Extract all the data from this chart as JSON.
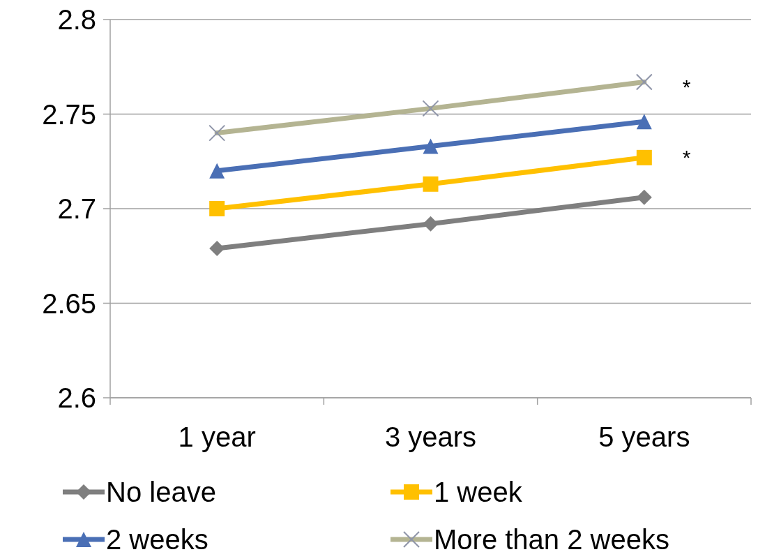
{
  "chart_data": {
    "type": "line",
    "categories": [
      "1 year",
      "3 years",
      "5 years"
    ],
    "series": [
      {
        "name": "No leave",
        "color": "#7f7f7f",
        "marker": "diamond",
        "values": [
          2.679,
          2.692,
          2.706
        ]
      },
      {
        "name": "1 week",
        "color": "#ffc000",
        "marker": "square",
        "values": [
          2.7,
          2.713,
          2.727
        ]
      },
      {
        "name": "2 weeks",
        "color": "#4a6fb5",
        "marker": "triangle",
        "values": [
          2.72,
          2.733,
          2.746
        ]
      },
      {
        "name": "More than 2 weeks",
        "color": "#b4b492",
        "marker": "cross",
        "values": [
          2.74,
          2.753,
          2.767
        ]
      }
    ],
    "ylim": [
      2.6,
      2.8
    ],
    "yticks": [
      2.6,
      2.65,
      2.7,
      2.75,
      2.8
    ],
    "grid": "y",
    "legend": "bottom",
    "annotations": [
      {
        "text": "*",
        "x": "5 years",
        "y": 2.767
      },
      {
        "text": "*",
        "x": "5 years",
        "y": 2.73
      }
    ]
  }
}
